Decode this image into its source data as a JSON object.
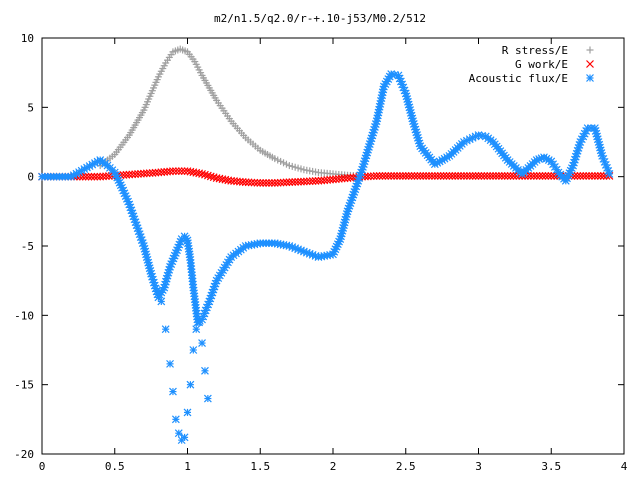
{
  "chart_data": {
    "type": "scatter",
    "title": "m2/n1.5/q2.0/r-+.10-j53/M0.2/512",
    "xlim": [
      0,
      4
    ],
    "ylim": [
      -20,
      10
    ],
    "xticks": [
      0,
      0.5,
      1,
      1.5,
      2,
      2.5,
      3,
      3.5,
      4
    ],
    "xtick_labels": [
      "0",
      "0.5",
      "1",
      "1.5",
      "2",
      "2.5",
      "3",
      "3.5",
      "4"
    ],
    "yticks": [
      -20,
      -15,
      -10,
      -5,
      0,
      5,
      10
    ],
    "ytick_labels": [
      "-20",
      "-15",
      "-10",
      "-5",
      "0",
      "5",
      "10"
    ],
    "grid": false,
    "legend_position": "top-right",
    "series": [
      {
        "name": "R stress/E",
        "marker": "plus",
        "color": "#a0a0a0",
        "x": [
          0.4,
          0.5,
          0.6,
          0.7,
          0.8,
          0.85,
          0.9,
          0.95,
          1.0,
          1.05,
          1.1,
          1.2,
          1.3,
          1.4,
          1.5,
          1.6,
          1.7,
          1.8,
          1.9,
          2.0,
          2.1,
          2.2
        ],
        "y": [
          0.8,
          1.6,
          3.0,
          4.8,
          7.2,
          8.2,
          9.0,
          9.2,
          9.0,
          8.3,
          7.3,
          5.5,
          4.0,
          2.8,
          1.9,
          1.3,
          0.8,
          0.5,
          0.3,
          0.2,
          0.1,
          0.05
        ]
      },
      {
        "name": "G work/E",
        "marker": "cross",
        "color": "#ff0000",
        "x": [
          0.0,
          0.2,
          0.4,
          0.6,
          0.8,
          0.9,
          1.0,
          1.1,
          1.2,
          1.3,
          1.4,
          1.5,
          1.6,
          1.7,
          1.8,
          1.9,
          2.0,
          2.1,
          2.2,
          2.3,
          2.4,
          2.6,
          2.8,
          3.0,
          3.2,
          3.4,
          3.6,
          3.8,
          3.9
        ],
        "y": [
          0.0,
          0.0,
          0.0,
          0.15,
          0.3,
          0.4,
          0.4,
          0.2,
          -0.1,
          -0.3,
          -0.4,
          -0.45,
          -0.45,
          -0.4,
          -0.35,
          -0.3,
          -0.2,
          -0.1,
          0.0,
          0.05,
          0.05,
          0.05,
          0.05,
          0.05,
          0.05,
          0.05,
          0.05,
          0.05,
          0.05
        ]
      },
      {
        "name": "Acoustic flux/E",
        "marker": "star",
        "color": "#1e90ff",
        "x": [
          0.0,
          0.2,
          0.4,
          0.45,
          0.5,
          0.55,
          0.6,
          0.65,
          0.7,
          0.75,
          0.8,
          0.84,
          0.88,
          0.92,
          0.96,
          0.98,
          1.0,
          1.02,
          1.04,
          1.07,
          1.1,
          1.15,
          1.2,
          1.3,
          1.4,
          1.5,
          1.6,
          1.7,
          1.8,
          1.9,
          2.0,
          2.05,
          2.1,
          2.2,
          2.3,
          2.35,
          2.4,
          2.45,
          2.5,
          2.55,
          2.6,
          2.7,
          2.8,
          2.9,
          3.0,
          3.05,
          3.1,
          3.2,
          3.3,
          3.4,
          3.45,
          3.5,
          3.55,
          3.6,
          3.65,
          3.7,
          3.75,
          3.8,
          3.85,
          3.9
        ],
        "y": [
          0.0,
          0.0,
          1.2,
          0.8,
          0.3,
          -0.8,
          -2.0,
          -3.5,
          -5.0,
          -7.0,
          -8.7,
          -8.0,
          -6.5,
          -5.5,
          -4.5,
          -4.3,
          -4.6,
          -6.0,
          -8.0,
          -10.5,
          -10.3,
          -9.0,
          -7.5,
          -5.8,
          -5.0,
          -4.8,
          -4.8,
          -5.0,
          -5.4,
          -5.8,
          -5.6,
          -4.5,
          -2.5,
          0.5,
          4.0,
          6.5,
          7.4,
          7.3,
          6.0,
          4.0,
          2.2,
          0.9,
          1.5,
          2.5,
          3.0,
          2.9,
          2.5,
          1.2,
          0.2,
          1.2,
          1.4,
          1.1,
          0.3,
          -0.3,
          0.8,
          2.5,
          3.5,
          3.5,
          1.5,
          0.2
        ]
      },
      {
        "name": "",
        "marker": "star",
        "color": "#1e90ff",
        "x": [
          0.82,
          0.85,
          0.88,
          0.9,
          0.92,
          0.94,
          0.96,
          0.98,
          1.0,
          1.02,
          1.04,
          1.06,
          1.08,
          1.1,
          1.12,
          1.14
        ],
        "y": [
          -9.0,
          -11.0,
          -13.5,
          -15.5,
          -17.5,
          -18.5,
          -19.0,
          -18.8,
          -17.0,
          -15.0,
          -12.5,
          -11.0,
          -10.5,
          -12.0,
          -14.0,
          -16.0
        ]
      }
    ]
  }
}
